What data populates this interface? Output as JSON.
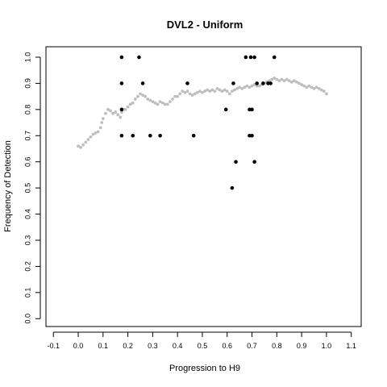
{
  "chart_data": {
    "type": "scatter",
    "title": "DVL2 - Uniform",
    "xlabel": "Progression to H9",
    "ylabel": "Frequency of Detection",
    "xlim": [
      -0.13,
      1.14
    ],
    "ylim": [
      -0.03,
      1.04
    ],
    "xticks": [
      "-0.1",
      "0.0",
      "0.1",
      "0.2",
      "0.3",
      "0.4",
      "0.5",
      "0.6",
      "0.7",
      "0.8",
      "0.9",
      "1.0",
      "1.1"
    ],
    "yticks": [
      "0.0",
      "0.1",
      "0.2",
      "0.3",
      "0.4",
      "0.5",
      "0.6",
      "0.7",
      "0.8",
      "0.9",
      "1.0"
    ],
    "grid": false,
    "legend": "none",
    "series": [
      {
        "color": "#bebebe",
        "marker": "small-circle",
        "points": [
          [
            0.0,
            0.66
          ],
          [
            0.01,
            0.655
          ],
          [
            0.02,
            0.665
          ],
          [
            0.03,
            0.675
          ],
          [
            0.04,
            0.685
          ],
          [
            0.05,
            0.695
          ],
          [
            0.06,
            0.705
          ],
          [
            0.07,
            0.71
          ],
          [
            0.08,
            0.715
          ],
          [
            0.09,
            0.73
          ],
          [
            0.095,
            0.75
          ],
          [
            0.1,
            0.765
          ],
          [
            0.11,
            0.785
          ],
          [
            0.12,
            0.8
          ],
          [
            0.13,
            0.795
          ],
          [
            0.14,
            0.785
          ],
          [
            0.15,
            0.79
          ],
          [
            0.16,
            0.78
          ],
          [
            0.17,
            0.77
          ],
          [
            0.175,
            0.79
          ],
          [
            0.18,
            0.8
          ],
          [
            0.19,
            0.8
          ],
          [
            0.2,
            0.81
          ],
          [
            0.21,
            0.82
          ],
          [
            0.22,
            0.825
          ],
          [
            0.23,
            0.84
          ],
          [
            0.24,
            0.85
          ],
          [
            0.25,
            0.86
          ],
          [
            0.26,
            0.855
          ],
          [
            0.27,
            0.85
          ],
          [
            0.28,
            0.84
          ],
          [
            0.29,
            0.835
          ],
          [
            0.3,
            0.83
          ],
          [
            0.31,
            0.825
          ],
          [
            0.32,
            0.82
          ],
          [
            0.33,
            0.83
          ],
          [
            0.34,
            0.825
          ],
          [
            0.35,
            0.82
          ],
          [
            0.36,
            0.82
          ],
          [
            0.37,
            0.83
          ],
          [
            0.38,
            0.84
          ],
          [
            0.39,
            0.85
          ],
          [
            0.4,
            0.85
          ],
          [
            0.41,
            0.86
          ],
          [
            0.42,
            0.87
          ],
          [
            0.43,
            0.865
          ],
          [
            0.44,
            0.87
          ],
          [
            0.45,
            0.86
          ],
          [
            0.46,
            0.855
          ],
          [
            0.47,
            0.86
          ],
          [
            0.48,
            0.865
          ],
          [
            0.49,
            0.87
          ],
          [
            0.5,
            0.865
          ],
          [
            0.51,
            0.87
          ],
          [
            0.52,
            0.875
          ],
          [
            0.53,
            0.87
          ],
          [
            0.54,
            0.875
          ],
          [
            0.55,
            0.87
          ],
          [
            0.56,
            0.88
          ],
          [
            0.57,
            0.875
          ],
          [
            0.58,
            0.87
          ],
          [
            0.59,
            0.875
          ],
          [
            0.6,
            0.87
          ],
          [
            0.61,
            0.86
          ],
          [
            0.62,
            0.87
          ],
          [
            0.63,
            0.875
          ],
          [
            0.64,
            0.88
          ],
          [
            0.65,
            0.885
          ],
          [
            0.66,
            0.88
          ],
          [
            0.67,
            0.885
          ],
          [
            0.68,
            0.89
          ],
          [
            0.69,
            0.885
          ],
          [
            0.7,
            0.89
          ],
          [
            0.71,
            0.895
          ],
          [
            0.72,
            0.89
          ],
          [
            0.73,
            0.89
          ],
          [
            0.74,
            0.895
          ],
          [
            0.75,
            0.9
          ],
          [
            0.76,
            0.905
          ],
          [
            0.77,
            0.91
          ],
          [
            0.78,
            0.915
          ],
          [
            0.79,
            0.92
          ],
          [
            0.8,
            0.915
          ],
          [
            0.81,
            0.91
          ],
          [
            0.82,
            0.915
          ],
          [
            0.83,
            0.91
          ],
          [
            0.84,
            0.915
          ],
          [
            0.85,
            0.91
          ],
          [
            0.86,
            0.905
          ],
          [
            0.87,
            0.91
          ],
          [
            0.88,
            0.905
          ],
          [
            0.89,
            0.9
          ],
          [
            0.9,
            0.895
          ],
          [
            0.91,
            0.89
          ],
          [
            0.92,
            0.885
          ],
          [
            0.93,
            0.89
          ],
          [
            0.94,
            0.885
          ],
          [
            0.95,
            0.88
          ],
          [
            0.96,
            0.885
          ],
          [
            0.97,
            0.88
          ],
          [
            0.98,
            0.875
          ],
          [
            0.99,
            0.87
          ],
          [
            1.0,
            0.86
          ]
        ]
      },
      {
        "color": "#000000",
        "marker": "circle",
        "points": [
          [
            0.175,
            1.0
          ],
          [
            0.175,
            0.9
          ],
          [
            0.175,
            0.8
          ],
          [
            0.175,
            0.7
          ],
          [
            0.22,
            0.7
          ],
          [
            0.245,
            1.0
          ],
          [
            0.26,
            0.9
          ],
          [
            0.29,
            0.7
          ],
          [
            0.33,
            0.7
          ],
          [
            0.44,
            0.9
          ],
          [
            0.465,
            0.7
          ],
          [
            0.595,
            0.8
          ],
          [
            0.62,
            0.5
          ],
          [
            0.625,
            0.9
          ],
          [
            0.635,
            0.6
          ],
          [
            0.675,
            1.0
          ],
          [
            0.69,
            0.8
          ],
          [
            0.69,
            0.7
          ],
          [
            0.695,
            1.0
          ],
          [
            0.7,
            0.8
          ],
          [
            0.7,
            0.7
          ],
          [
            0.71,
            1.0
          ],
          [
            0.71,
            0.6
          ],
          [
            0.72,
            0.9
          ],
          [
            0.745,
            0.9
          ],
          [
            0.765,
            0.9
          ],
          [
            0.775,
            0.9
          ],
          [
            0.79,
            1.0
          ]
        ]
      }
    ]
  }
}
